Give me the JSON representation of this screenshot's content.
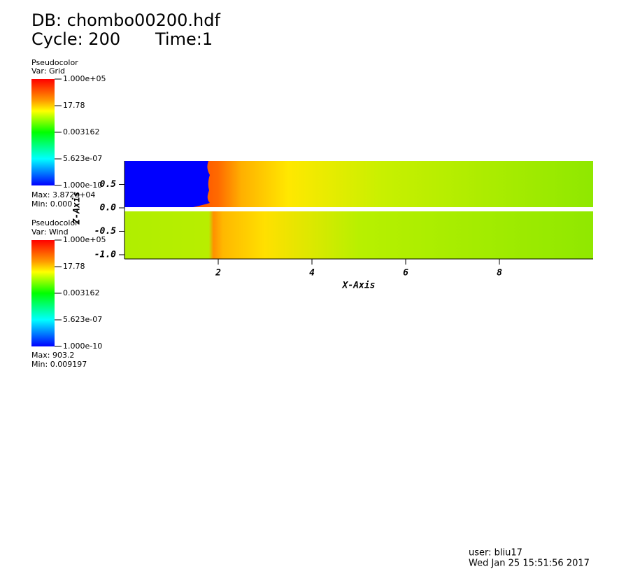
{
  "header": {
    "db": "DB: chombo00200.hdf",
    "cycle": "Cycle: 200",
    "time": "Time:1"
  },
  "legends": [
    {
      "plot": "Pseudocolor",
      "var": "Var: Grid",
      "labels": [
        "1.000e+05",
        "17.78",
        "0.003162",
        "5.623e-07",
        "1.000e-10"
      ],
      "max": "Max: 3.872e+04",
      "min": "Min: 0.000"
    },
    {
      "plot": "Pseudocolor",
      "var": "Var: Wind",
      "labels": [
        "1.000e+05",
        "17.78",
        "0.003162",
        "5.623e-07",
        "1.000e-10"
      ],
      "max": "Max: 903.2",
      "min": "Min: 0.009197"
    }
  ],
  "plot": {
    "x_label": "X-Axis",
    "y_label": "Z-Axis",
    "xlim": [
      0,
      10
    ],
    "ylim": [
      -1.09,
      1.0
    ],
    "xticks": [
      2,
      4,
      6,
      8
    ],
    "yticks": [
      0.5,
      {
        "value": 0,
        "label": "0.0"
      },
      -0.5,
      {
        "value": -1,
        "label": "-1.0"
      }
    ]
  },
  "footer": {
    "user": "user: bliu17",
    "date": "Wed Jan 25 15:51:56 2017"
  }
}
